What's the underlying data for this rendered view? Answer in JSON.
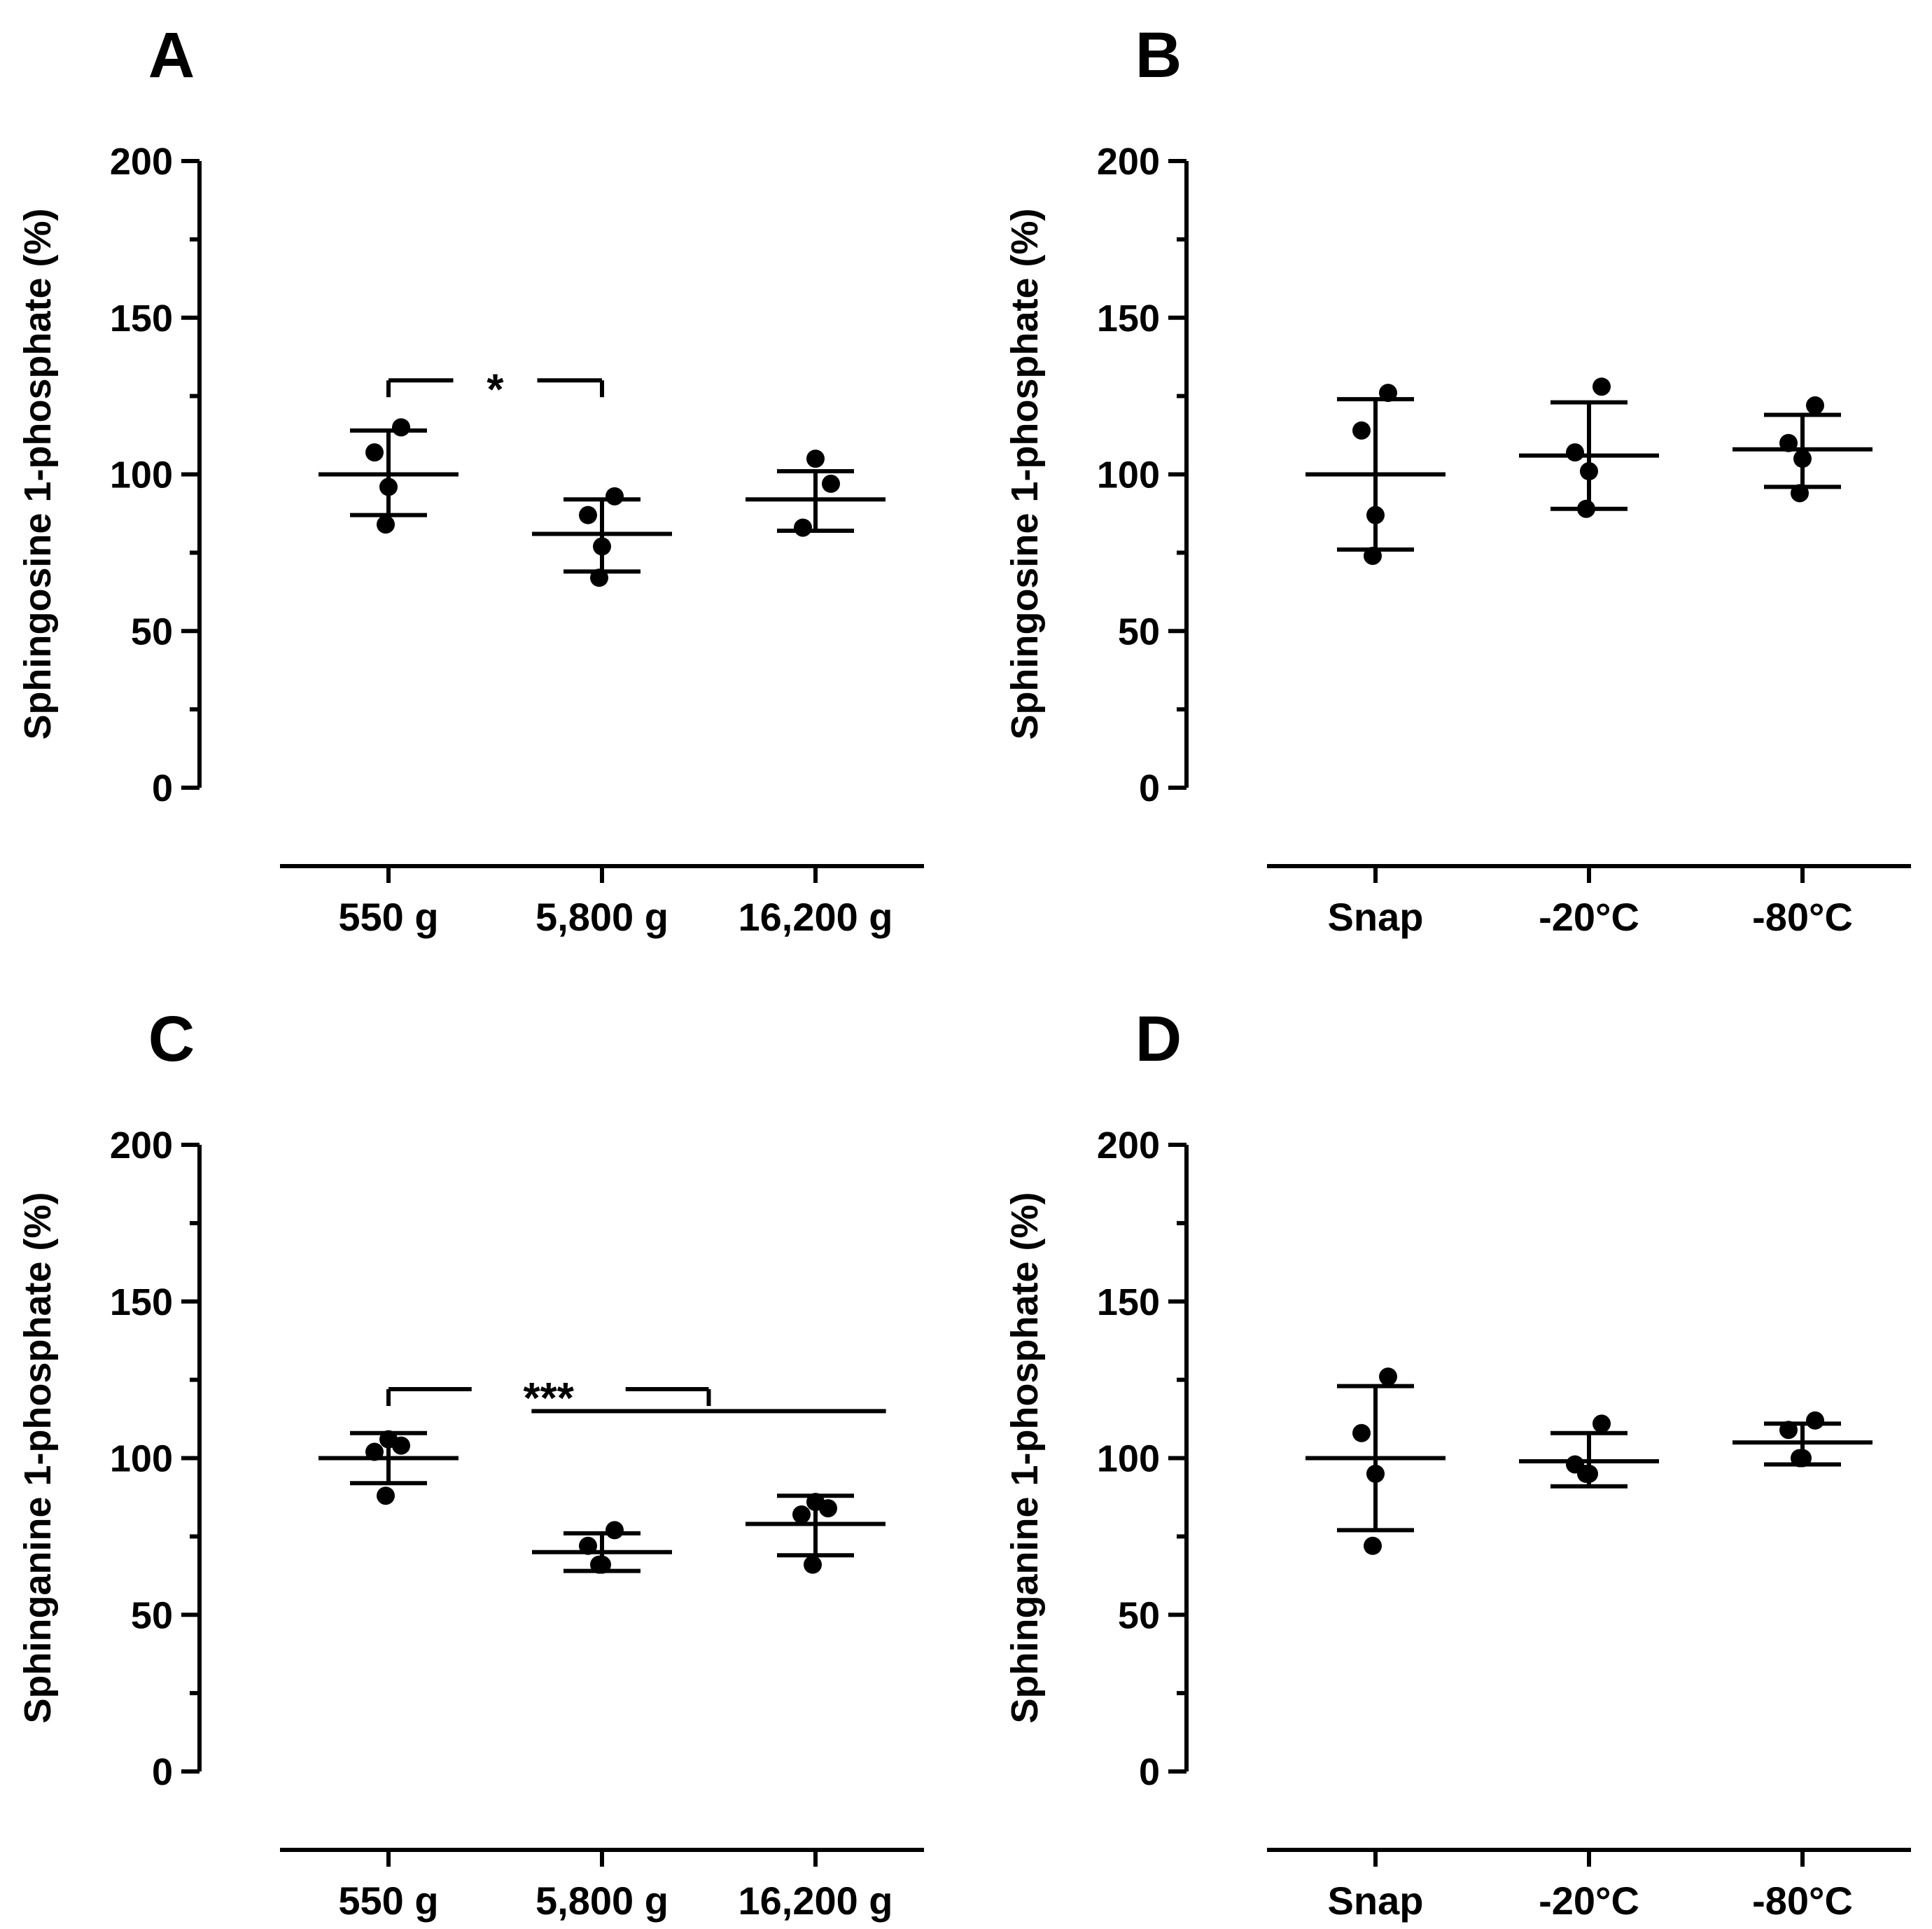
{
  "chart_data": [
    {
      "type": "scatter",
      "panel": "A",
      "ylabel": "Sphingosine 1-phosphate (%)",
      "ylim": [
        0,
        200
      ],
      "yticks": [
        0,
        50,
        100,
        150,
        200
      ],
      "categories": [
        "550 g",
        "5,800 g",
        "16,200 g"
      ],
      "groups": [
        {
          "points": [
            115,
            107,
            96,
            84
          ],
          "mean": 100,
          "sd_low": 87,
          "sd_high": 114
        },
        {
          "points": [
            93,
            87,
            77,
            67
          ],
          "mean": 81,
          "sd_low": 69,
          "sd_high": 92
        },
        {
          "points": [
            105,
            97,
            83
          ],
          "mean": 92,
          "sd_low": 82,
          "sd_high": 101
        }
      ],
      "significance": [
        {
          "label": "*",
          "from": 0,
          "to": 1,
          "y": 130
        }
      ]
    },
    {
      "type": "scatter",
      "panel": "B",
      "ylabel": "Sphingosine 1-phosphate (%)",
      "ylim": [
        0,
        200
      ],
      "yticks": [
        0,
        50,
        100,
        150,
        200
      ],
      "categories": [
        "Snap",
        "-20°C",
        "-80°C"
      ],
      "groups": [
        {
          "points": [
            126,
            114,
            87,
            74
          ],
          "mean": 100,
          "sd_low": 76,
          "sd_high": 124
        },
        {
          "points": [
            128,
            107,
            101,
            89
          ],
          "mean": 106,
          "sd_low": 89,
          "sd_high": 123
        },
        {
          "points": [
            122,
            110,
            105,
            94
          ],
          "mean": 108,
          "sd_low": 96,
          "sd_high": 119
        }
      ],
      "significance": []
    },
    {
      "type": "scatter",
      "panel": "C",
      "ylabel": "Sphinganine 1-phosphate (%)",
      "ylim": [
        0,
        200
      ],
      "yticks": [
        0,
        50,
        100,
        150,
        200
      ],
      "categories": [
        "550 g",
        "5,800 g",
        "16,200 g"
      ],
      "groups": [
        {
          "points": [
            104,
            102,
            106,
            88
          ],
          "mean": 100,
          "sd_low": 92,
          "sd_high": 108
        },
        {
          "points": [
            77,
            72,
            66,
            66
          ],
          "mean": 70,
          "sd_low": 64,
          "sd_high": 76
        },
        {
          "points": [
            84,
            82,
            86,
            66
          ],
          "mean": 79,
          "sd_low": 69,
          "sd_high": 88
        }
      ],
      "significance": [
        {
          "label": "***",
          "from": 0,
          "to": 1.5,
          "y": 122,
          "second_bar": {
            "from": 0.67,
            "to": 2.33,
            "y": 115
          }
        }
      ]
    },
    {
      "type": "scatter",
      "panel": "D",
      "ylabel": "Sphinganine 1-phosphate (%)",
      "ylim": [
        0,
        200
      ],
      "yticks": [
        0,
        50,
        100,
        150,
        200
      ],
      "categories": [
        "Snap",
        "-20°C",
        "-80°C"
      ],
      "groups": [
        {
          "points": [
            126,
            108,
            95,
            72
          ],
          "mean": 100,
          "sd_low": 77,
          "sd_high": 123
        },
        {
          "points": [
            111,
            98,
            95,
            95
          ],
          "mean": 99,
          "sd_low": 91,
          "sd_high": 108
        },
        {
          "points": [
            112,
            109,
            100,
            100
          ],
          "mean": 105,
          "sd_low": 98,
          "sd_high": 111
        }
      ],
      "significance": []
    }
  ]
}
